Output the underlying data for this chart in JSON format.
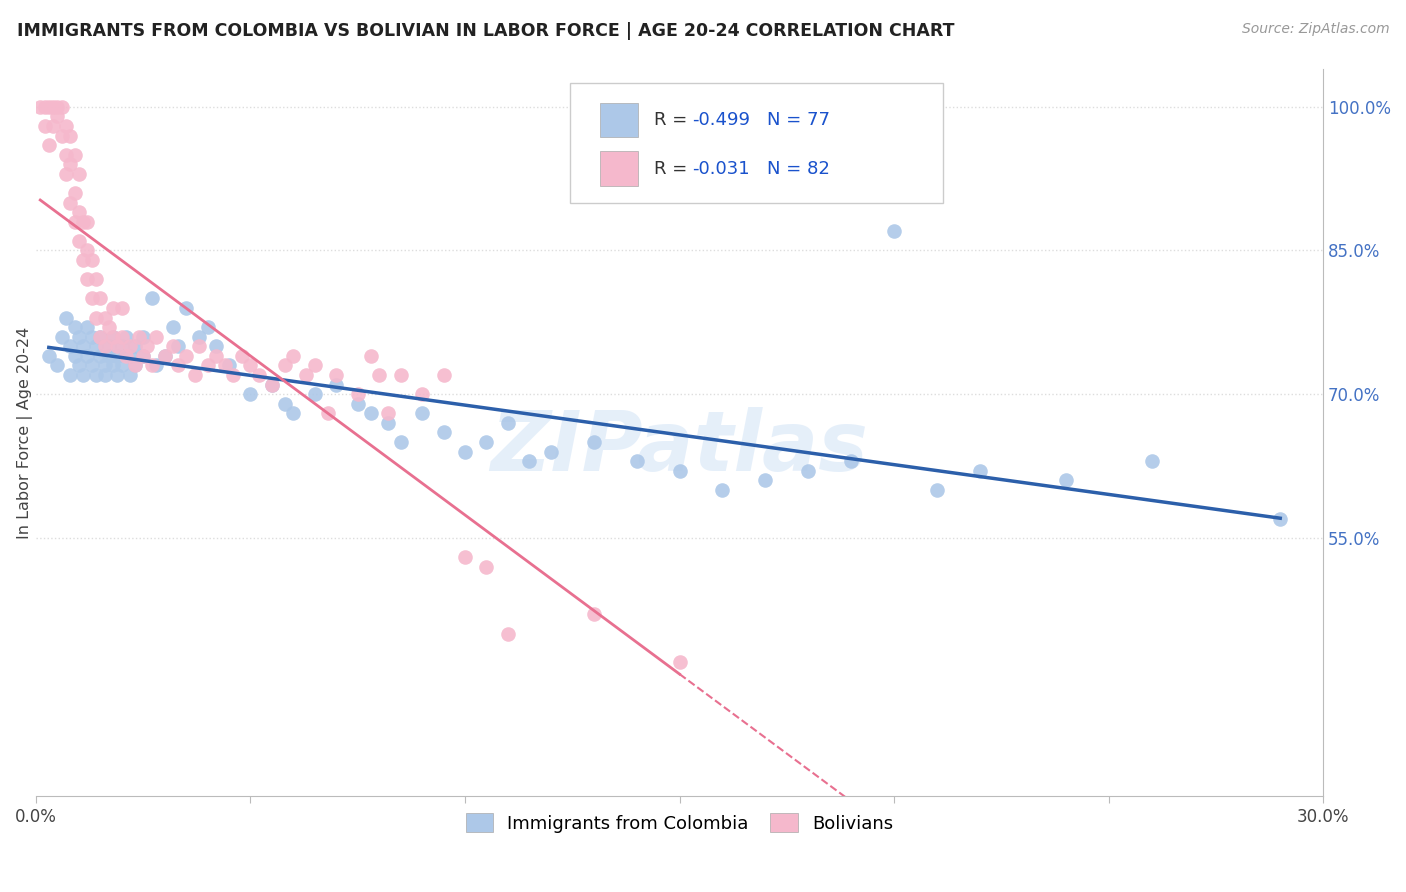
{
  "title": "IMMIGRANTS FROM COLOMBIA VS BOLIVIAN IN LABOR FORCE | AGE 20-24 CORRELATION CHART",
  "source": "Source: ZipAtlas.com",
  "ylabel": "In Labor Force | Age 20-24",
  "watermark": "ZIPatlas",
  "xlim": [
    0.0,
    0.3
  ],
  "ylim": [
    0.28,
    1.04
  ],
  "colombia_R": -0.499,
  "colombia_N": 77,
  "bolivia_R": -0.031,
  "bolivia_N": 82,
  "colombia_color": "#adc8e8",
  "bolivia_color": "#f5b8cc",
  "colombia_line_color": "#2c5faa",
  "bolivia_line_color": "#e87090",
  "legend_R_color": "#1a52cc",
  "background_color": "#ffffff",
  "grid_color": "#dddddd",
  "colombia_scatter_x": [
    0.003,
    0.005,
    0.006,
    0.007,
    0.008,
    0.008,
    0.009,
    0.009,
    0.01,
    0.01,
    0.011,
    0.011,
    0.012,
    0.012,
    0.013,
    0.013,
    0.014,
    0.014,
    0.015,
    0.015,
    0.016,
    0.016,
    0.017,
    0.017,
    0.018,
    0.018,
    0.019,
    0.019,
    0.02,
    0.02,
    0.021,
    0.022,
    0.022,
    0.023,
    0.023,
    0.025,
    0.025,
    0.027,
    0.028,
    0.03,
    0.032,
    0.033,
    0.035,
    0.038,
    0.04,
    0.042,
    0.045,
    0.05,
    0.055,
    0.058,
    0.06,
    0.065,
    0.07,
    0.075,
    0.078,
    0.082,
    0.085,
    0.09,
    0.095,
    0.1,
    0.105,
    0.11,
    0.115,
    0.12,
    0.13,
    0.14,
    0.15,
    0.16,
    0.17,
    0.18,
    0.19,
    0.2,
    0.21,
    0.22,
    0.24,
    0.26,
    0.29
  ],
  "colombia_scatter_y": [
    0.74,
    0.73,
    0.76,
    0.78,
    0.72,
    0.75,
    0.77,
    0.74,
    0.73,
    0.76,
    0.75,
    0.72,
    0.74,
    0.77,
    0.73,
    0.76,
    0.75,
    0.72,
    0.74,
    0.76,
    0.73,
    0.72,
    0.75,
    0.74,
    0.73,
    0.76,
    0.72,
    0.74,
    0.75,
    0.73,
    0.76,
    0.74,
    0.72,
    0.75,
    0.73,
    0.76,
    0.74,
    0.8,
    0.73,
    0.74,
    0.77,
    0.75,
    0.79,
    0.76,
    0.77,
    0.75,
    0.73,
    0.7,
    0.71,
    0.69,
    0.68,
    0.7,
    0.71,
    0.69,
    0.68,
    0.67,
    0.65,
    0.68,
    0.66,
    0.64,
    0.65,
    0.67,
    0.63,
    0.64,
    0.65,
    0.63,
    0.62,
    0.6,
    0.61,
    0.62,
    0.63,
    0.87,
    0.6,
    0.62,
    0.61,
    0.63,
    0.57
  ],
  "bolivia_scatter_x": [
    0.001,
    0.002,
    0.002,
    0.003,
    0.003,
    0.004,
    0.004,
    0.005,
    0.005,
    0.006,
    0.006,
    0.007,
    0.007,
    0.007,
    0.008,
    0.008,
    0.008,
    0.009,
    0.009,
    0.009,
    0.01,
    0.01,
    0.01,
    0.011,
    0.011,
    0.012,
    0.012,
    0.012,
    0.013,
    0.013,
    0.014,
    0.014,
    0.015,
    0.015,
    0.016,
    0.016,
    0.017,
    0.018,
    0.018,
    0.019,
    0.02,
    0.02,
    0.021,
    0.022,
    0.023,
    0.024,
    0.025,
    0.026,
    0.027,
    0.028,
    0.03,
    0.032,
    0.033,
    0.035,
    0.037,
    0.038,
    0.04,
    0.042,
    0.044,
    0.046,
    0.048,
    0.05,
    0.052,
    0.055,
    0.058,
    0.06,
    0.063,
    0.065,
    0.068,
    0.07,
    0.075,
    0.078,
    0.08,
    0.082,
    0.085,
    0.09,
    0.095,
    0.1,
    0.105,
    0.11,
    0.13,
    0.15
  ],
  "bolivia_scatter_y": [
    1.0,
    1.0,
    0.98,
    1.0,
    0.96,
    1.0,
    0.98,
    0.99,
    1.0,
    0.97,
    1.0,
    0.93,
    0.95,
    0.98,
    0.9,
    0.94,
    0.97,
    0.88,
    0.91,
    0.95,
    0.86,
    0.89,
    0.93,
    0.84,
    0.88,
    0.82,
    0.85,
    0.88,
    0.8,
    0.84,
    0.78,
    0.82,
    0.76,
    0.8,
    0.75,
    0.78,
    0.77,
    0.76,
    0.79,
    0.75,
    0.76,
    0.79,
    0.74,
    0.75,
    0.73,
    0.76,
    0.74,
    0.75,
    0.73,
    0.76,
    0.74,
    0.75,
    0.73,
    0.74,
    0.72,
    0.75,
    0.73,
    0.74,
    0.73,
    0.72,
    0.74,
    0.73,
    0.72,
    0.71,
    0.73,
    0.74,
    0.72,
    0.73,
    0.68,
    0.72,
    0.7,
    0.74,
    0.72,
    0.68,
    0.72,
    0.7,
    0.72,
    0.53,
    0.52,
    0.45,
    0.47,
    0.42
  ]
}
